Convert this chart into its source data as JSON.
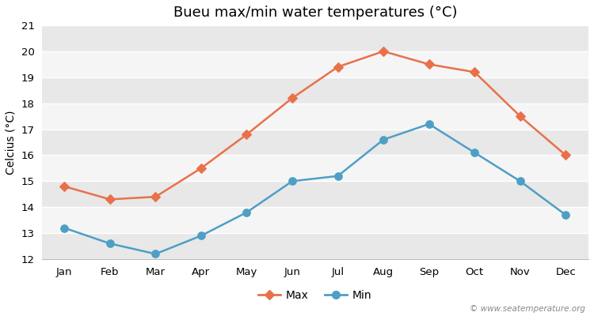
{
  "title": "Bueu max/min water temperatures (°C)",
  "ylabel": "Celcius (°C)",
  "months": [
    "Jan",
    "Feb",
    "Mar",
    "Apr",
    "May",
    "Jun",
    "Jul",
    "Aug",
    "Sep",
    "Oct",
    "Nov",
    "Dec"
  ],
  "max_values": [
    14.8,
    14.3,
    14.4,
    15.5,
    16.8,
    18.2,
    19.4,
    20.0,
    19.5,
    19.2,
    17.5,
    16.0
  ],
  "min_values": [
    13.2,
    12.6,
    12.2,
    12.9,
    13.8,
    15.0,
    15.2,
    16.6,
    17.2,
    16.1,
    15.0,
    13.7
  ],
  "max_color": "#e8714a",
  "min_color": "#4e9fc5",
  "ylim": [
    12,
    21
  ],
  "yticks": [
    12,
    13,
    14,
    15,
    16,
    17,
    18,
    19,
    20,
    21
  ],
  "fig_bg_color": "#ffffff",
  "plot_bg_light": "#f0f0f0",
  "plot_bg_dark": "#e0e0e0",
  "grid_color": "#ffffff",
  "watermark": "© www.seatemperature.org",
  "title_fontsize": 13,
  "label_fontsize": 10,
  "tick_fontsize": 9.5
}
